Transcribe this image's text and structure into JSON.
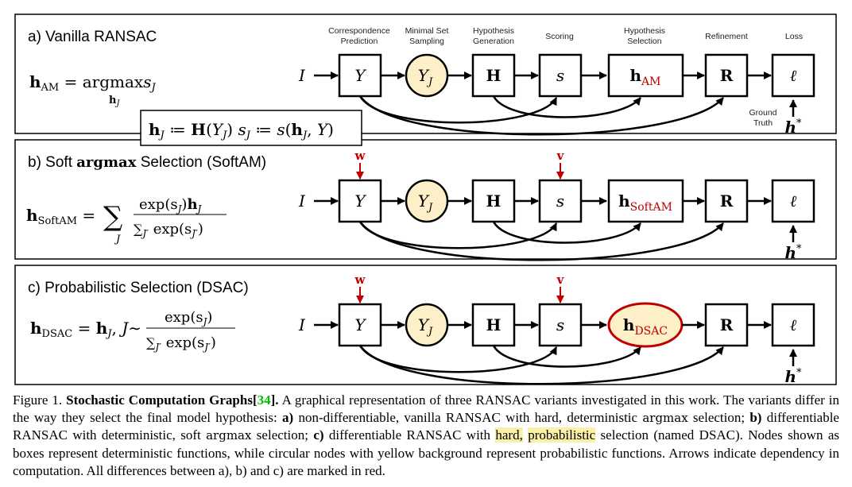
{
  "figure": {
    "panels": [
      {
        "title": "a) Vanilla  RANSAC",
        "equation": {
          "lhs": "h",
          "lhs_sub": "AM",
          "rhs_op": "argmax",
          "rhs_op_sub": "h",
          "rhs_op_subsub": "J",
          "rhs_var": "s",
          "rhs_var_sub": "J"
        },
        "selection_node": {
          "main": "h",
          "sub": "AM"
        }
      },
      {
        "title": "b) Soft argmax Selection (SoftAM)",
        "title_parts": [
          "b) Soft ",
          "argmax",
          " Selection (SoftAM)"
        ],
        "equation": {
          "lhs": "h",
          "lhs_sub": "SoftAM",
          "num": "exp(s",
          "num_sub": "J",
          "num_tail": ")h",
          "num_tail_sub": "J",
          "den": "exp(s",
          "den_sub": "J′",
          "sum_sub": "J",
          "sum2_sub": "J′"
        },
        "selection_node": {
          "main": "h",
          "sub": "SoftAM"
        },
        "marks": [
          "w",
          "v"
        ]
      },
      {
        "title": "c) Probabilistic Selection (DSAC)",
        "equation": {
          "lhs": "h",
          "lhs_sub": "DSAC",
          "mid": "h",
          "mid_sub": "J",
          "rv": "J",
          "num": "exp(s",
          "num_sub": "J",
          "den": "exp(s",
          "den_sub": "J′"
        },
        "selection_node": {
          "main": "h",
          "sub": "DSAC"
        },
        "marks": [
          "w",
          "v"
        ]
      }
    ],
    "stage_labels": [
      {
        "line1": "Correspondence",
        "line2": "Prediction"
      },
      {
        "line1": "Minimal Set",
        "line2": "Sampling"
      },
      {
        "line1": "Hypothesis",
        "line2": "Generation"
      },
      {
        "line1": "Scoring",
        "line2": ""
      },
      {
        "line1": "Hypothesis",
        "line2": "Selection"
      },
      {
        "line1": "Refinement",
        "line2": ""
      },
      {
        "line1": "Loss",
        "line2": ""
      }
    ],
    "nodes": {
      "input": "I",
      "corr": "Y",
      "sample": "Y",
      "sample_sub": "J",
      "hyp": "H",
      "score": "s",
      "refine": "R",
      "loss": "ℓ",
      "gt": "h",
      "gt_sup": "*"
    },
    "ground_truth_label": {
      "line1": "Ground",
      "line2": "Truth"
    },
    "definition_box": "h_J := H(Y_J)    s_J := s(h_J, Y)",
    "colors": {
      "accent_red": "#c00000",
      "node_yellow": "#fdf0c8",
      "highlight": "#fbf0a8",
      "ref_green": "#00c000"
    }
  },
  "caption": {
    "label": "Figure 1.",
    "title": "Stochastic Computation Graphs",
    "ref_open": "[",
    "ref_num": "34",
    "ref_close": "].",
    "text1": " A graphical representation of three RANSAC variants investigated in this work. The variants differ in the way they select the final model hypothesis: ",
    "a_label": "a)",
    "text2": " non-differentiable, vanilla RANSAC with hard, deterministic ",
    "argmax": "argmax",
    "text3": " selection; ",
    "b_label": "b)",
    "text4": " differentiable RANSAC with deterministic, soft ",
    "text5": " selection; ",
    "c_label": "c)",
    "text6": " differentiable RANSAC with ",
    "hl1": "hard,",
    "hl2": "probabilistic",
    "text7": " selection (named DSAC). Nodes shown as boxes represent deterministic functions, while circular nodes with yellow background represent probabilistic functions. Arrows indicate dependency in computation. All differences between a), b) and c) are marked in red."
  }
}
